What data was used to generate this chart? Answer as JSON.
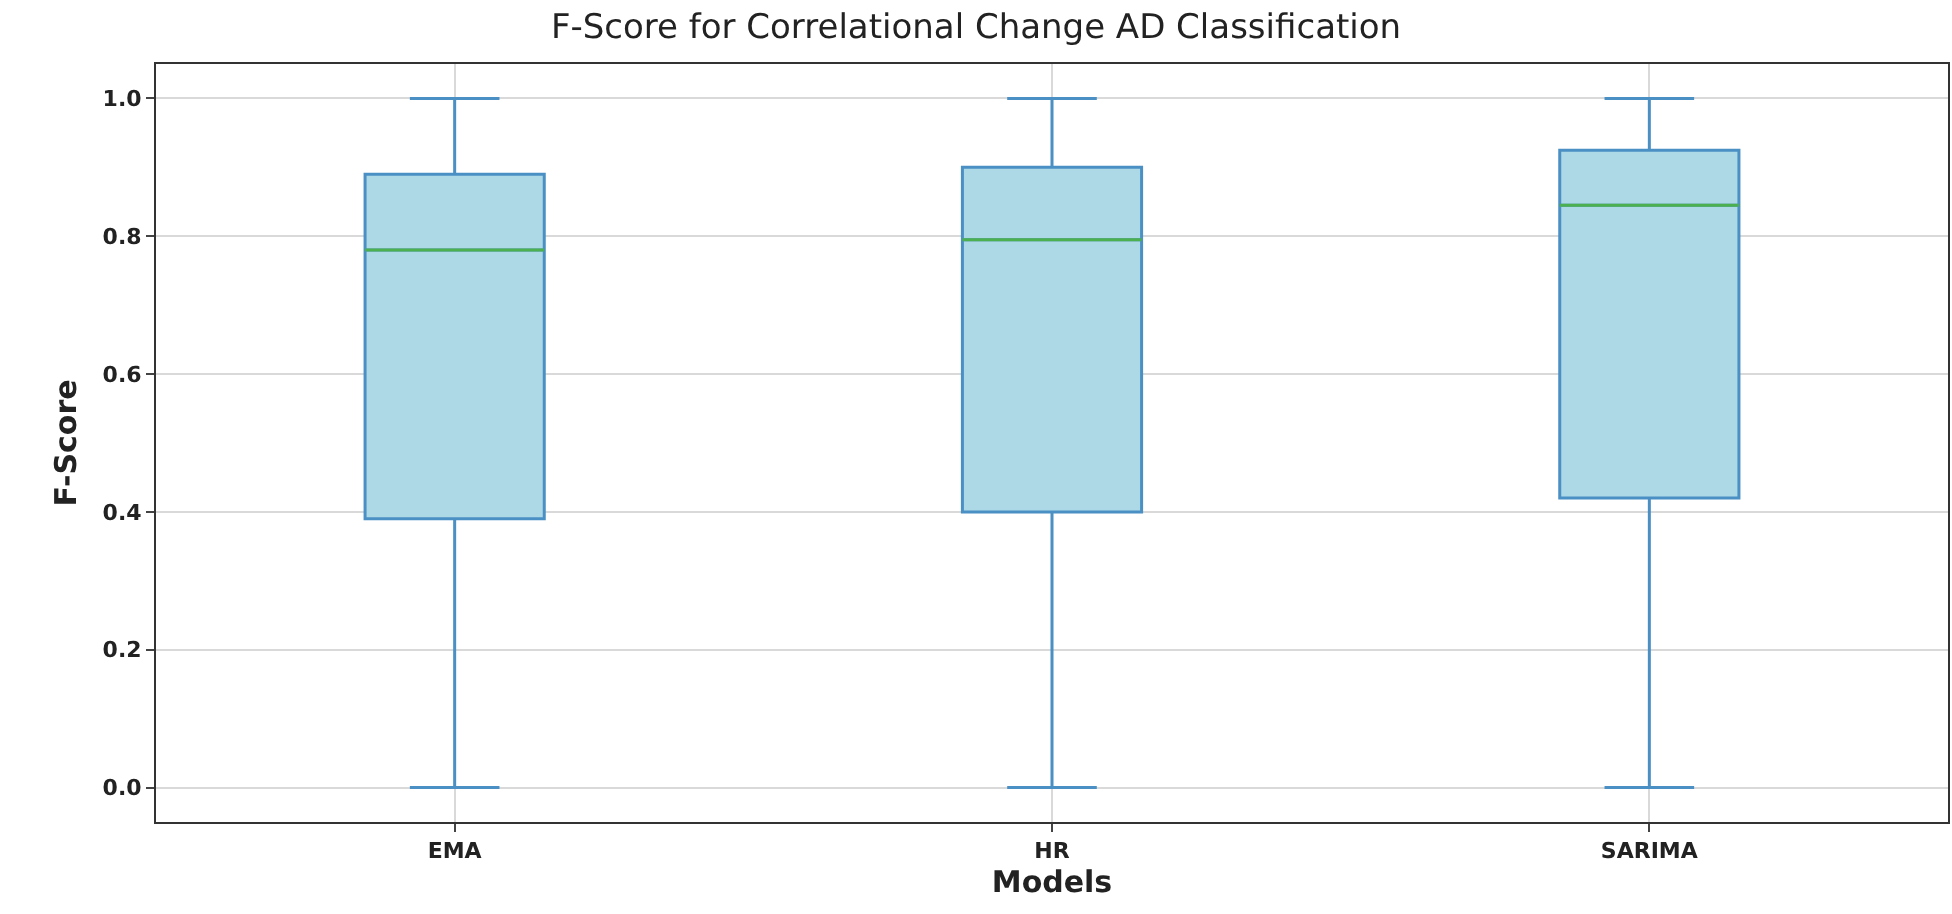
{
  "chart_data": {
    "type": "box",
    "title": "F-Score for Correlational Change AD Classification",
    "xlabel": "Models",
    "ylabel": "F-Score",
    "categories": [
      "EMA",
      "HR",
      "SARIMA"
    ],
    "boxes": [
      {
        "low": 0,
        "q1": 0.39,
        "median": 0.78,
        "q3": 0.89,
        "high": 1
      },
      {
        "low": 0,
        "q1": 0.4,
        "median": 0.795,
        "q3": 0.9,
        "high": 1
      },
      {
        "low": 0,
        "q1": 0.42,
        "median": 0.845,
        "q3": 0.925,
        "high": 1
      }
    ],
    "color": "#add8e6",
    "ylim": [
      -0.05,
      1.05
    ],
    "yticks": [
      {
        "value": 0,
        "label": "0.0"
      },
      0.2,
      0.4,
      0.6,
      0.8,
      {
        "value": 1,
        "label": "1.0"
      }
    ],
    "grid": true
  }
}
